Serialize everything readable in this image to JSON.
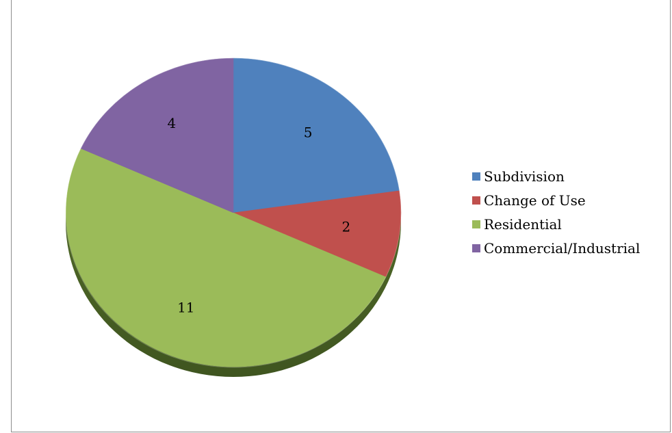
{
  "chart_data": {
    "type": "pie",
    "categories": [
      "Subdivision",
      "Change of Use",
      "Residential",
      "Commercial/Industrial"
    ],
    "values": [
      5,
      2,
      11,
      4
    ],
    "colors": [
      "#4f81bd",
      "#c0504d",
      "#9bbb59",
      "#8064a2"
    ],
    "data_labels": [
      "5",
      "2",
      "11",
      "4"
    ],
    "title": "",
    "legend_position": "right",
    "start_angle_deg": 0,
    "direction": "clockwise",
    "style": "3d-tilted"
  }
}
